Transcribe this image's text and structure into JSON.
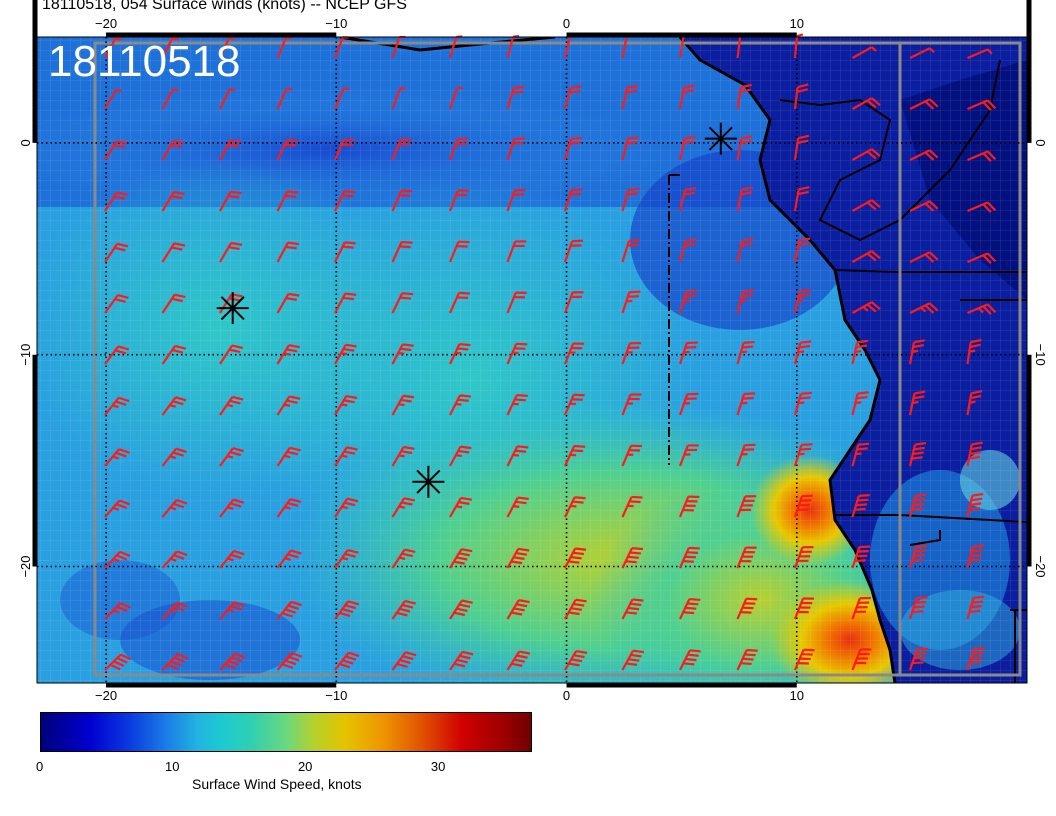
{
  "header": {
    "title": "18110518, 054 Surface winds (knots) -- NCEP GFS"
  },
  "map": {
    "date_stamp": "18110518",
    "lon_range": [
      -23,
      20
    ],
    "lat_range": [
      -25.5,
      5
    ],
    "lon_ticks": [
      {
        "value": -20,
        "label": "−20"
      },
      {
        "value": -10,
        "label": "−10"
      },
      {
        "value": 0,
        "label": "0"
      },
      {
        "value": 10,
        "label": "10"
      }
    ],
    "lat_ticks": [
      {
        "value": 0,
        "label": "0"
      },
      {
        "value": -10,
        "label": "−10"
      },
      {
        "value": -20,
        "label": "−20"
      }
    ],
    "asterisk_markers": [
      {
        "lon": -14.5,
        "lat": -7.8
      },
      {
        "lon": -6.0,
        "lat": -16.0
      },
      {
        "lon": 6.7,
        "lat": 0.2
      }
    ],
    "colors": {
      "barb": "#ff1a1a",
      "coast": "#000000",
      "grid_dots": "#000000",
      "ocean_low": "#1050d8",
      "ocean_mid": "#28b8d8",
      "ocean_high": "#e8c800",
      "land": "#001080"
    }
  },
  "colorbar": {
    "label": "Surface Wind Speed, knots",
    "min": 0,
    "max": 37,
    "ticks": [
      {
        "value": 0,
        "label": "0"
      },
      {
        "value": 10,
        "label": "10"
      },
      {
        "value": 20,
        "label": "20"
      },
      {
        "value": 30,
        "label": "30"
      }
    ]
  }
}
